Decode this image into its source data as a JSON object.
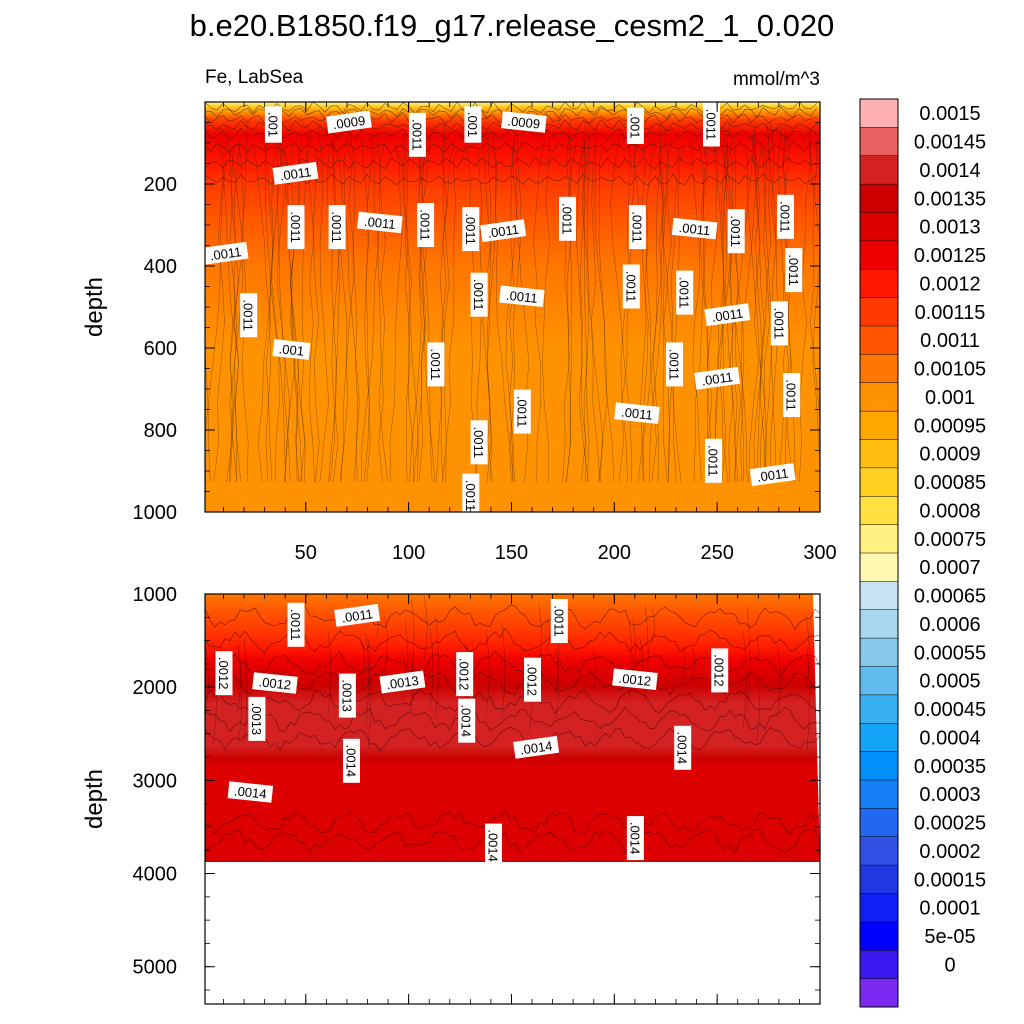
{
  "chart_data": {
    "type": "contour",
    "title": "b.e20.B1850.f19_g17.release_cesm2_1_0.020",
    "variable": "Fe, LabSea",
    "units": "mmol/m^3",
    "xlim": [
      1,
      300
    ],
    "panels": [
      {
        "name": "upper",
        "ylabel": "depth",
        "ylim": [
          0,
          1000
        ],
        "y_ticks": [
          200,
          400,
          600,
          800,
          1000
        ],
        "x_ticks": [
          50,
          100,
          150,
          200,
          250,
          300
        ],
        "x_tick_labels": [
          "50",
          "100",
          "150",
          "200",
          "250",
          "300"
        ],
        "depth_profile": [
          [
            0,
            0.0007
          ],
          [
            10,
            0.00085
          ],
          [
            25,
            0.001
          ],
          [
            45,
            0.00115
          ],
          [
            80,
            0.00125
          ],
          [
            150,
            0.00122
          ],
          [
            200,
            0.00115
          ],
          [
            280,
            0.0011
          ],
          [
            400,
            0.00105
          ],
          [
            600,
            0.00103
          ],
          [
            800,
            0.00102
          ],
          [
            1000,
            0.00102
          ]
        ],
        "contour_labels": [
          {
            "text": ".001",
            "x": 34,
            "y": 55
          },
          {
            "text": ".0009",
            "x": 71,
            "y": 50
          },
          {
            "text": ".0011",
            "x": 104,
            "y": 80
          },
          {
            "text": ".001",
            "x": 131,
            "y": 55
          },
          {
            "text": ".0009",
            "x": 156,
            "y": 50
          },
          {
            "text": ".001",
            "x": 210,
            "y": 58
          },
          {
            "text": ".0011",
            "x": 247,
            "y": 55
          },
          {
            "text": ".0011",
            "x": 45,
            "y": 175
          },
          {
            "text": ".0011",
            "x": 45,
            "y": 305
          },
          {
            "text": ".0011",
            "x": 65,
            "y": 305
          },
          {
            "text": ".0011",
            "x": 86,
            "y": 295
          },
          {
            "text": ".0011",
            "x": 108,
            "y": 300
          },
          {
            "text": ".0011",
            "x": 130,
            "y": 310
          },
          {
            "text": ".0011",
            "x": 146,
            "y": 315
          },
          {
            "text": ".0011",
            "x": 177,
            "y": 285
          },
          {
            "text": ".0011",
            "x": 211,
            "y": 305
          },
          {
            "text": ".0011",
            "x": 239,
            "y": 310
          },
          {
            "text": ".0011",
            "x": 259,
            "y": 315
          },
          {
            "text": ".0011",
            "x": 283,
            "y": 280
          },
          {
            "text": ".0011",
            "x": 11,
            "y": 370
          },
          {
            "text": ".0011",
            "x": 287,
            "y": 410
          },
          {
            "text": ".0011",
            "x": 134,
            "y": 470
          },
          {
            "text": ".0011",
            "x": 155,
            "y": 475
          },
          {
            "text": ".0011",
            "x": 208,
            "y": 450
          },
          {
            "text": ".0011",
            "x": 234,
            "y": 465
          },
          {
            "text": ".0011",
            "x": 255,
            "y": 520
          },
          {
            "text": ".0011",
            "x": 280,
            "y": 540
          },
          {
            "text": ".0011",
            "x": 22,
            "y": 520
          },
          {
            "text": ".001",
            "x": 43,
            "y": 605
          },
          {
            "text": ".0011",
            "x": 113,
            "y": 640
          },
          {
            "text": ".0011",
            "x": 229,
            "y": 640
          },
          {
            "text": ".0011",
            "x": 250,
            "y": 675
          },
          {
            "text": ".0011",
            "x": 286,
            "y": 715
          },
          {
            "text": ".0011",
            "x": 155,
            "y": 755
          },
          {
            "text": ".0011",
            "x": 211,
            "y": 760
          },
          {
            "text": ".0011",
            "x": 134,
            "y": 830
          },
          {
            "text": ".0011",
            "x": 248,
            "y": 875
          },
          {
            "text": ".0011",
            "x": 277,
            "y": 910
          },
          {
            "text": ".0011",
            "x": 130,
            "y": 960
          }
        ]
      },
      {
        "name": "lower",
        "ylabel": "depth",
        "ylim": [
          1000,
          5400
        ],
        "y_ticks": [
          1000,
          2000,
          3000,
          4000,
          5000
        ],
        "seafloor_depth": 3870,
        "depth_profile": [
          [
            1000,
            0.00105
          ],
          [
            1300,
            0.0011
          ],
          [
            1600,
            0.00115
          ],
          [
            1900,
            0.0012
          ],
          [
            2100,
            0.00125
          ],
          [
            2300,
            0.0013
          ],
          [
            2500,
            0.00135
          ],
          [
            2800,
            0.0014
          ],
          [
            3200,
            0.0014
          ],
          [
            3500,
            0.0014
          ],
          [
            3700,
            0.00135
          ],
          [
            3870,
            0.0013
          ]
        ],
        "contour_labels": [
          {
            "text": ".0011",
            "x": 45,
            "y": 1330
          },
          {
            "text": ".0011",
            "x": 75,
            "y": 1235
          },
          {
            "text": ".0011",
            "x": 173,
            "y": 1290
          },
          {
            "text": ".0012",
            "x": 10,
            "y": 1850
          },
          {
            "text": ".0012",
            "x": 35,
            "y": 1960
          },
          {
            "text": ".0013",
            "x": 26,
            "y": 2340
          },
          {
            "text": ".0013",
            "x": 70,
            "y": 2090
          },
          {
            "text": ".0013",
            "x": 97,
            "y": 1950
          },
          {
            "text": ".0012",
            "x": 127,
            "y": 1860
          },
          {
            "text": ".0012",
            "x": 160,
            "y": 1920
          },
          {
            "text": ".0012",
            "x": 210,
            "y": 1920
          },
          {
            "text": ".0012",
            "x": 251,
            "y": 1820
          },
          {
            "text": ".0014",
            "x": 128,
            "y": 2360
          },
          {
            "text": ".0014",
            "x": 162,
            "y": 2650
          },
          {
            "text": ".0014",
            "x": 233,
            "y": 2650
          },
          {
            "text": ".0014",
            "x": 72,
            "y": 2790
          },
          {
            "text": ".0014",
            "x": 23,
            "y": 3130
          },
          {
            "text": ".0014",
            "x": 141,
            "y": 3700
          },
          {
            "text": ".0014",
            "x": 210,
            "y": 3620
          }
        ]
      }
    ],
    "colorbar": {
      "levels": [
        "0.0015",
        "0.00145",
        "0.0014",
        "0.00135",
        "0.0013",
        "0.00125",
        "0.0012",
        "0.00115",
        "0.0011",
        "0.00105",
        "0.001",
        "0.00095",
        "0.0009",
        "0.00085",
        "0.0008",
        "0.00075",
        "0.0007",
        "0.00065",
        "0.0006",
        "0.00055",
        "0.0005",
        "0.00045",
        "0.0004",
        "0.00035",
        "0.0003",
        "0.00025",
        "0.0002",
        "0.00015",
        "0.0001",
        "5e-05",
        "0"
      ],
      "colors": [
        "#ffb0b0",
        "#e86060",
        "#d42222",
        "#cc0000",
        "#dd0000",
        "#ee0000",
        "#ff1800",
        "#ff3a00",
        "#ff5500",
        "#ff7700",
        "#ff9200",
        "#ffa800",
        "#ffbe10",
        "#ffd020",
        "#ffe040",
        "#fff080",
        "#fff8b0",
        "#c8e4f2",
        "#a8d6ee",
        "#88c8ea",
        "#60bcee",
        "#38b0f2",
        "#14a4f8",
        "#0090f8",
        "#1480f4",
        "#2268ee",
        "#3050e4",
        "#2038e0",
        "#1020f4",
        "#0000ff",
        "#3a18f0",
        "#7a2af0"
      ]
    }
  }
}
